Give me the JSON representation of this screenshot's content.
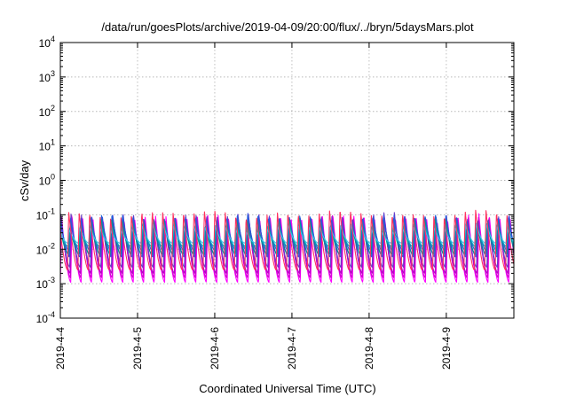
{
  "chart_data": {
    "type": "line",
    "title": "/data/run/goesPlots/archive/2019-04-09/20:00/flux/../bryn/5daysMars.plot",
    "xlabel": "Coordinated Universal Time (UTC)",
    "ylabel": "cSv/day",
    "yscale": "log",
    "ylim": [
      0.0001,
      10000
    ],
    "xlim": [
      "2019-04-04 00:00",
      "2019-04-09 21:00"
    ],
    "grid": true,
    "x_tick_labels": [
      "2019-4-4",
      "2019-4-5",
      "2019-4-6",
      "2019-4-7",
      "2019-4-8",
      "2019-4-9"
    ],
    "y_ticks": [
      {
        "base": "10",
        "exp": "-4"
      },
      {
        "base": "10",
        "exp": "-3"
      },
      {
        "base": "10",
        "exp": "-2"
      },
      {
        "base": "10",
        "exp": "-1"
      },
      {
        "base": "10",
        "exp": "0"
      },
      {
        "base": "10",
        "exp": "1"
      },
      {
        "base": "10",
        "exp": "2"
      },
      {
        "base": "10",
        "exp": "3"
      },
      {
        "base": "10",
        "exp": "4"
      }
    ],
    "pattern": {
      "approx_cycles_per_day": 7.4,
      "peak_range": [
        0.04,
        0.15
      ],
      "trough_range": [
        0.001,
        0.015
      ]
    },
    "series": [
      {
        "color": "#ff00ff",
        "peak": 0.1,
        "trough": 0.0011
      },
      {
        "color": "#d400d4",
        "peak": 0.09,
        "trough": 0.0015
      },
      {
        "color": "#b800c8",
        "peak": 0.085,
        "trough": 0.002
      },
      {
        "color": "#6a3cc8",
        "peak": 0.11,
        "trough": 0.003
      },
      {
        "color": "#3a4ce0",
        "peak": 0.1,
        "trough": 0.006
      },
      {
        "color": "#2060d8",
        "peak": 0.095,
        "trough": 0.009
      },
      {
        "color": "#009090",
        "peak": 0.075,
        "trough": 0.007
      },
      {
        "color": "#00b4b4",
        "peak": 0.06,
        "trough": 0.012
      },
      {
        "color": "#44bbee",
        "peak": 0.05,
        "trough": 0.015
      },
      {
        "color": "#ff3060",
        "peak": 0.13,
        "trough": 0.0025
      }
    ]
  }
}
